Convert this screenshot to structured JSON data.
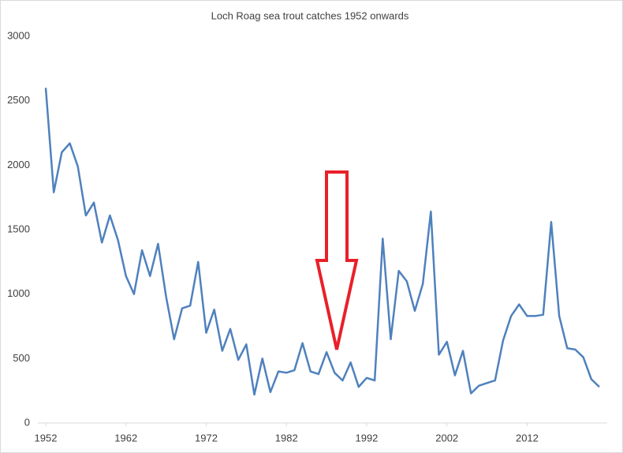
{
  "chart_data": {
    "type": "line",
    "title": "Loch Roag sea trout catches 1952 onwards",
    "x": [
      1952,
      1953,
      1954,
      1955,
      1956,
      1957,
      1958,
      1959,
      1960,
      1961,
      1962,
      1963,
      1964,
      1965,
      1966,
      1967,
      1968,
      1969,
      1970,
      1971,
      1972,
      1973,
      1974,
      1975,
      1976,
      1977,
      1978,
      1979,
      1980,
      1981,
      1982,
      1983,
      1984,
      1985,
      1986,
      1987,
      1988,
      1989,
      1990,
      1991,
      1992,
      1993,
      1994,
      1995,
      1996,
      1997,
      1998,
      1999,
      2000,
      2001,
      2002,
      2003,
      2004,
      2005,
      2006,
      2007,
      2008,
      2009,
      2010,
      2011,
      2012,
      2013,
      2014,
      2015,
      2016,
      2017,
      2018,
      2019,
      2020,
      2021
    ],
    "series": [
      {
        "color": "#4f81bd",
        "values": [
          2600,
          1790,
          2100,
          2170,
          1990,
          1610,
          1710,
          1400,
          1610,
          1420,
          1140,
          1000,
          1340,
          1140,
          1390,
          980,
          650,
          890,
          910,
          1250,
          700,
          880,
          560,
          730,
          490,
          610,
          220,
          500,
          240,
          400,
          390,
          410,
          620,
          400,
          380,
          550,
          390,
          330,
          470,
          280,
          350,
          330,
          1430,
          650,
          1180,
          1100,
          870,
          1080,
          1640,
          530,
          630,
          370,
          560,
          230,
          290,
          310,
          330,
          640,
          830,
          920,
          830,
          830,
          840,
          1560,
          830,
          580,
          570,
          510,
          340,
          280
        ]
      }
    ],
    "xlim": [
      1952,
      2021
    ],
    "xticks": [
      1952,
      1962,
      1972,
      1982,
      1992,
      2002,
      2012
    ],
    "ylim": [
      0,
      3000
    ],
    "yticks": [
      0,
      500,
      1000,
      1500,
      2000,
      2500,
      3000
    ],
    "grid": false
  }
}
